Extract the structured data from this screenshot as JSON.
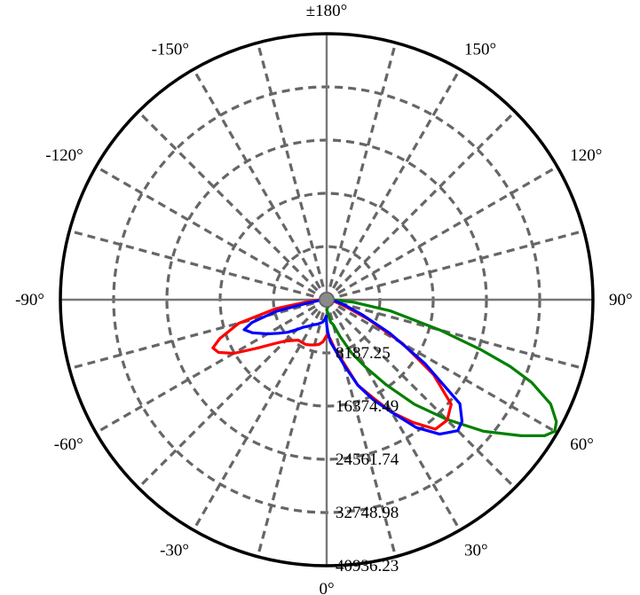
{
  "chart_data": {
    "type": "polar",
    "angular_ticks": [
      {
        "deg": 0,
        "label": "0°"
      },
      {
        "deg": 30,
        "label": "30°"
      },
      {
        "deg": 60,
        "label": "60°"
      },
      {
        "deg": 90,
        "label": "90°"
      },
      {
        "deg": 120,
        "label": "120°"
      },
      {
        "deg": 150,
        "label": "150°"
      },
      {
        "deg": 180,
        "label": "±180°"
      },
      {
        "deg": -150,
        "label": "-150°"
      },
      {
        "deg": -120,
        "label": "-120°"
      },
      {
        "deg": -90,
        "label": "-90°"
      },
      {
        "deg": -60,
        "label": "-60°"
      },
      {
        "deg": -30,
        "label": "-30°"
      }
    ],
    "radial_ticks": [
      {
        "value": 8187.25,
        "label": "8187.25"
      },
      {
        "value": 16374.49,
        "label": "16374.49"
      },
      {
        "value": 24561.74,
        "label": "24561.74"
      },
      {
        "value": 32748.98,
        "label": "32748.98"
      },
      {
        "value": 40936.23,
        "label": "40936.23"
      }
    ],
    "r_max": 40936.23,
    "grid": true,
    "series": [
      {
        "color": "#008000",
        "points": [
          [
            0,
            1500
          ],
          [
            5,
            2000
          ],
          [
            10,
            3500
          ],
          [
            15,
            4000
          ],
          [
            20,
            6000
          ],
          [
            25,
            9000
          ],
          [
            30,
            12000
          ],
          [
            35,
            16000
          ],
          [
            40,
            21000
          ],
          [
            45,
            26000
          ],
          [
            50,
            31500
          ],
          [
            55,
            36500
          ],
          [
            58,
            39500
          ],
          [
            60,
            40500
          ],
          [
            62,
            40000
          ],
          [
            65,
            38000
          ],
          [
            68,
            34000
          ],
          [
            70,
            30000
          ],
          [
            72,
            25000
          ],
          [
            75,
            18000
          ],
          [
            80,
            10000
          ],
          [
            85,
            4000
          ],
          [
            90,
            800
          ]
        ]
      },
      {
        "color": "#ff0000",
        "points": [
          [
            -88,
            800
          ],
          [
            -85,
            2500
          ],
          [
            -80,
            8000
          ],
          [
            -75,
            14000
          ],
          [
            -70,
            17500
          ],
          [
            -67,
            19000
          ],
          [
            -64,
            18500
          ],
          [
            -60,
            16500
          ],
          [
            -55,
            13000
          ],
          [
            -50,
            10500
          ],
          [
            -45,
            9000
          ],
          [
            -40,
            8200
          ],
          [
            -35,
            7600
          ],
          [
            -30,
            7600
          ],
          [
            -25,
            7600
          ],
          [
            -20,
            7400
          ],
          [
            -15,
            7200
          ],
          [
            -10,
            7000
          ],
          [
            -5,
            6500
          ],
          [
            0,
            5500
          ],
          [
            5,
            6000
          ],
          [
            10,
            8000
          ],
          [
            15,
            10000
          ],
          [
            20,
            14000
          ],
          [
            25,
            16500
          ],
          [
            30,
            20000
          ],
          [
            35,
            23000
          ],
          [
            40,
            26000
          ],
          [
            45,
            26200
          ],
          [
            50,
            25000
          ],
          [
            55,
            20000
          ],
          [
            60,
            13500
          ],
          [
            65,
            7000
          ],
          [
            70,
            3000
          ],
          [
            75,
            1500
          ],
          [
            80,
            800
          ]
        ]
      },
      {
        "color": "#0000ff",
        "points": [
          [
            -85,
            1000
          ],
          [
            -80,
            3000
          ],
          [
            -77,
            8000
          ],
          [
            -73,
            12000
          ],
          [
            -70,
            13500
          ],
          [
            -66,
            12500
          ],
          [
            -60,
            10500
          ],
          [
            -55,
            9000
          ],
          [
            -50,
            7800
          ],
          [
            -45,
            6500
          ],
          [
            -40,
            5500
          ],
          [
            -35,
            5000
          ],
          [
            -30,
            4500
          ],
          [
            -20,
            4000
          ],
          [
            -10,
            3500
          ],
          [
            -5,
            3000
          ],
          [
            -2,
            2500
          ],
          [
            0,
            3800
          ],
          [
            2,
            5000
          ],
          [
            5,
            6500
          ],
          [
            10,
            8000
          ],
          [
            15,
            10500
          ],
          [
            20,
            14000
          ],
          [
            25,
            17000
          ],
          [
            30,
            20000
          ],
          [
            35,
            24000
          ],
          [
            40,
            27000
          ],
          [
            45,
            28500
          ],
          [
            48,
            28000
          ],
          [
            52,
            26000
          ],
          [
            57,
            18000
          ],
          [
            62,
            11000
          ],
          [
            67,
            6000
          ],
          [
            73,
            3000
          ],
          [
            80,
            1500
          ],
          [
            85,
            800
          ]
        ]
      }
    ]
  }
}
